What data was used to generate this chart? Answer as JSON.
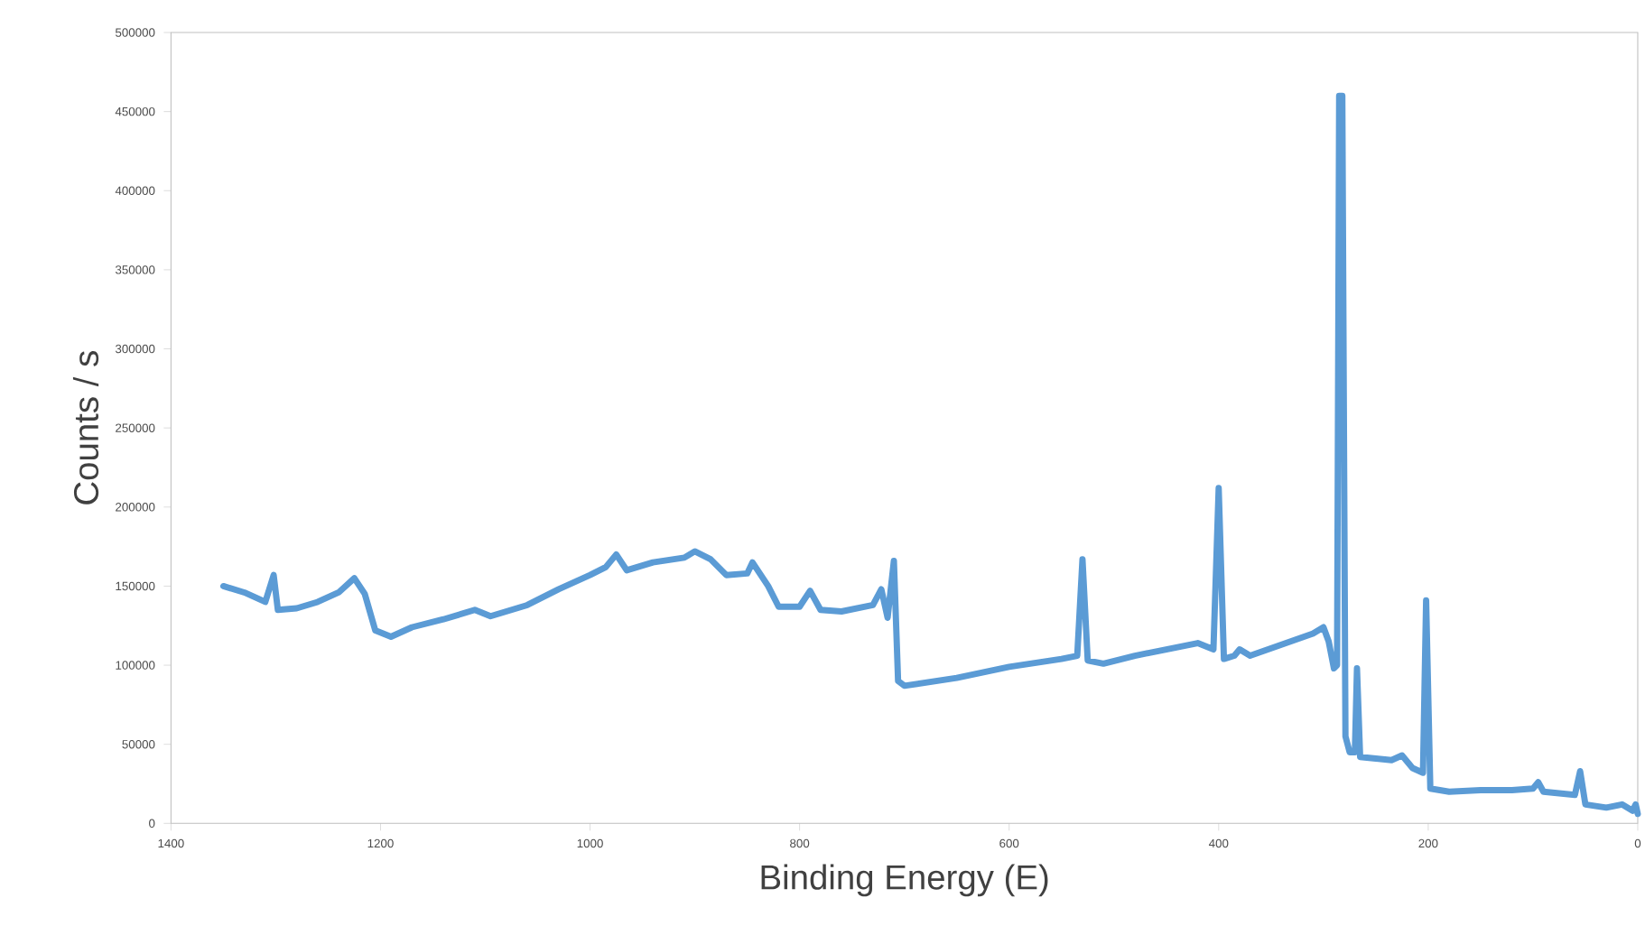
{
  "chart_data": {
    "type": "line",
    "xlabel": "Binding Energy (E)",
    "ylabel": "Counts / s",
    "xlim": [
      1400,
      0
    ],
    "xticks": [
      1400,
      1200,
      1000,
      800,
      600,
      400,
      200,
      0
    ],
    "ylim": [
      0,
      500000
    ],
    "yticks": [
      0,
      50000,
      100000,
      150000,
      200000,
      250000,
      300000,
      350000,
      400000,
      450000,
      500000
    ],
    "grid": false,
    "marker": "none",
    "line_style": "solid",
    "series": [
      {
        "color": "#5b9bd5",
        "x": [
          1350,
          1330,
          1310,
          1302,
          1298,
          1280,
          1260,
          1240,
          1225,
          1215,
          1205,
          1190,
          1170,
          1140,
          1110,
          1095,
          1060,
          1030,
          1000,
          985,
          975,
          965,
          940,
          910,
          900,
          885,
          870,
          850,
          845,
          830,
          820,
          800,
          790,
          780,
          760,
          730,
          722,
          716,
          710,
          706,
          700,
          650,
          600,
          550,
          535,
          530,
          525,
          510,
          480,
          450,
          420,
          405,
          400,
          395,
          385,
          380,
          370,
          340,
          310,
          300,
          295,
          290,
          287,
          285,
          282,
          279,
          275,
          270,
          268,
          265,
          250,
          235,
          225,
          215,
          205,
          202,
          198,
          180,
          150,
          120,
          100,
          95,
          90,
          60,
          55,
          50,
          30,
          15,
          5,
          2,
          0
        ],
        "values": [
          150000,
          146000,
          140000,
          157000,
          135000,
          136000,
          140000,
          146000,
          155000,
          145000,
          122000,
          118000,
          124000,
          129000,
          135000,
          131000,
          138000,
          148000,
          157000,
          162000,
          170000,
          160000,
          165000,
          168000,
          172000,
          167000,
          157000,
          158000,
          165000,
          150000,
          137000,
          137000,
          147000,
          135000,
          134000,
          138000,
          148000,
          130000,
          166000,
          90000,
          87000,
          92000,
          99000,
          104000,
          106000,
          167000,
          103000,
          101000,
          106000,
          110000,
          114000,
          110000,
          212000,
          104000,
          106000,
          110000,
          106000,
          113000,
          120000,
          124000,
          115000,
          98000,
          100000,
          460000,
          460000,
          55000,
          45000,
          45000,
          98000,
          42000,
          41000,
          40000,
          43000,
          35000,
          32000,
          141000,
          22000,
          20000,
          21000,
          21000,
          22000,
          26000,
          20000,
          18000,
          33000,
          12000,
          10000,
          12000,
          8000,
          12000,
          6000
        ]
      }
    ]
  }
}
